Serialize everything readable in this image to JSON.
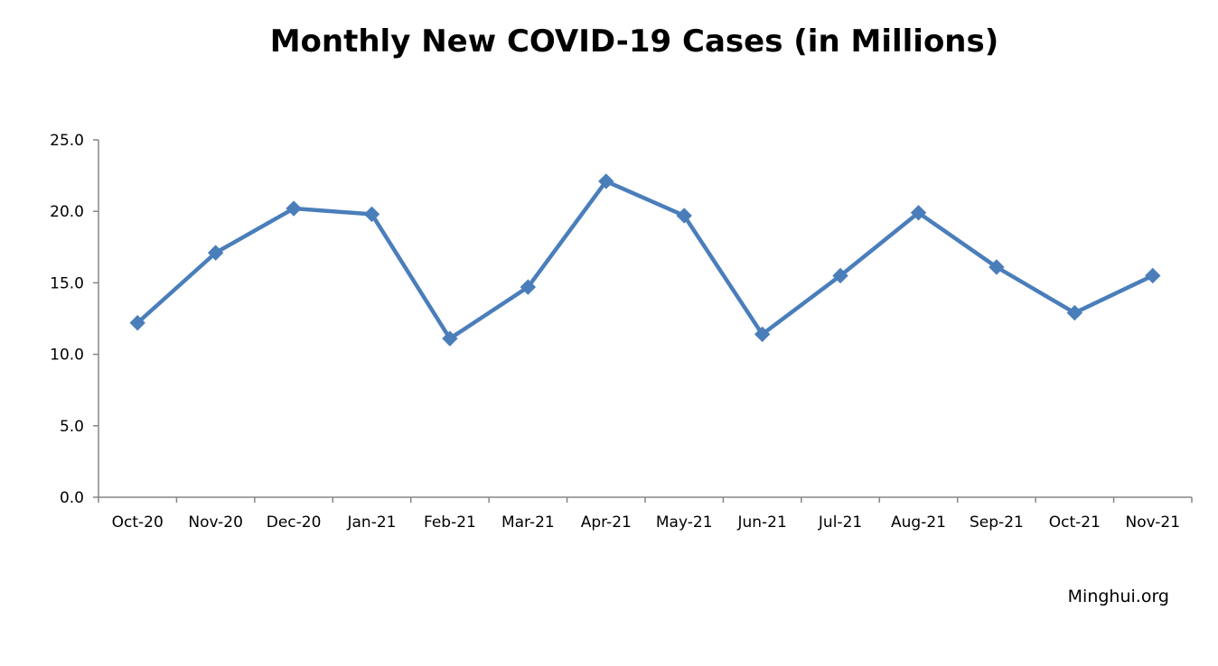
{
  "chart_data": {
    "type": "line",
    "title": "Monthly New COVID-19 Cases (in Millions)",
    "xlabel": "",
    "ylabel": "",
    "categories": [
      "Oct-20",
      "Nov-20",
      "Dec-20",
      "Jan-21",
      "Feb-21",
      "Mar-21",
      "Apr-21",
      "May-21",
      "Jun-21",
      "Jul-21",
      "Aug-21",
      "Sep-21",
      "Oct-21",
      "Nov-21"
    ],
    "series": [
      {
        "values": [
          12.2,
          17.1,
          20.2,
          19.8,
          11.1,
          14.7,
          22.1,
          19.7,
          11.4,
          15.5,
          19.9,
          16.1,
          12.9,
          15.5
        ],
        "color": "#4a7ebb",
        "marker": "diamond"
      }
    ],
    "ylim": [
      0,
      25
    ],
    "yticks": [
      "0.0",
      "5.0",
      "10.0",
      "15.0",
      "20.0",
      "25.0"
    ],
    "grid": false,
    "legend": "none"
  },
  "source": "Minghui.org",
  "colors": {
    "axis": "#868686",
    "line": "#4a7ebb"
  }
}
